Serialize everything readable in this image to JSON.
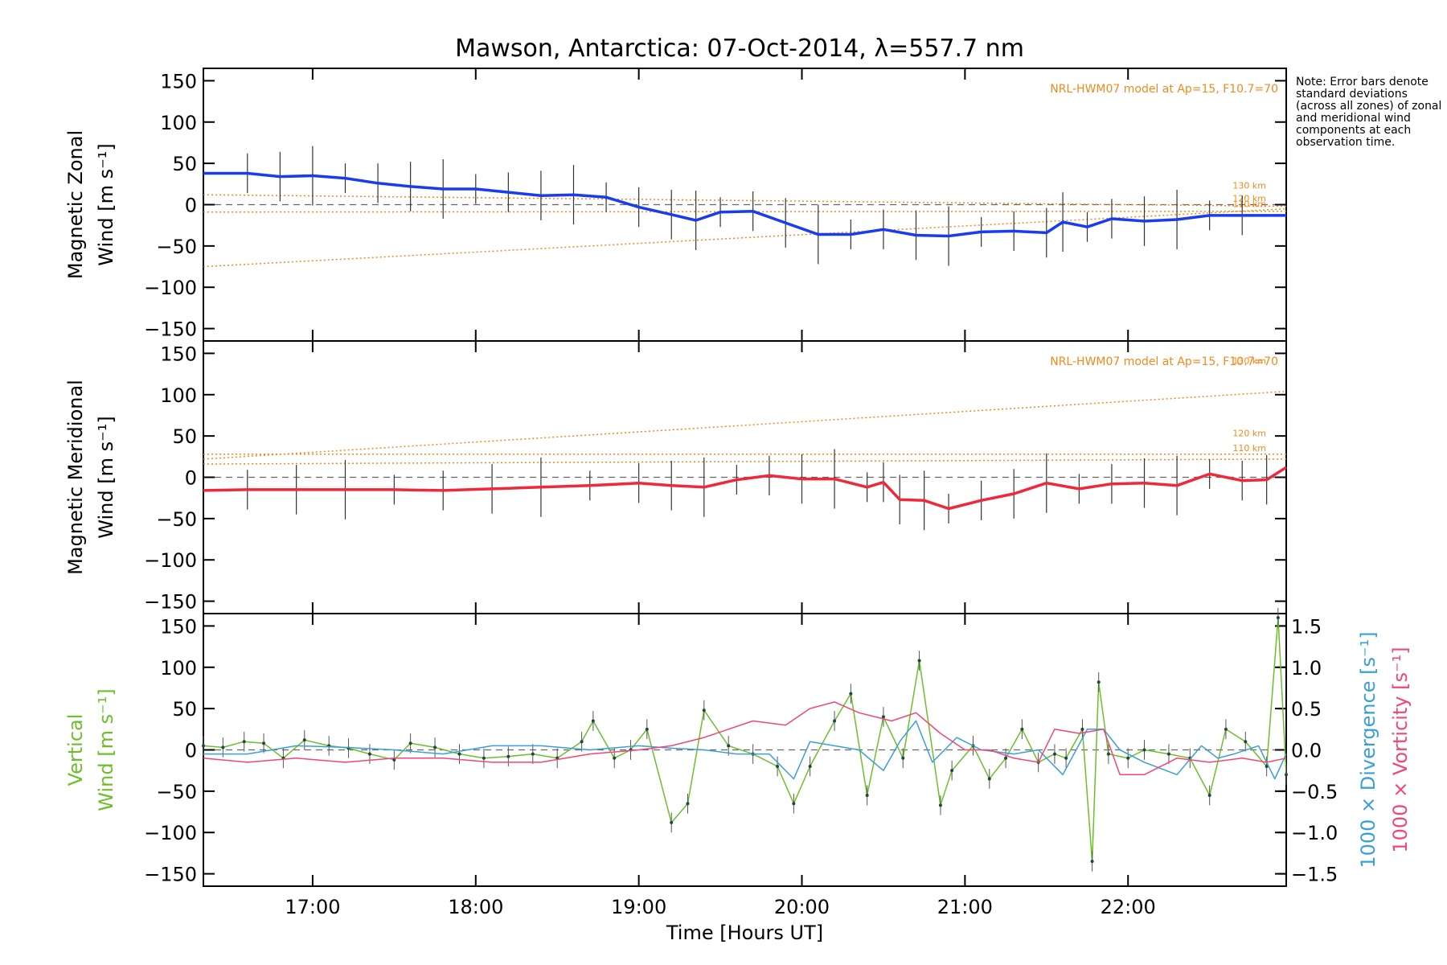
{
  "colors": {
    "zonal": "#1a3cf0",
    "meridional": "#f0283c",
    "vertical": "#6cbf2a",
    "divergence": "#3a9fd6",
    "vorticity": "#f0467a",
    "model": "#f08a1e",
    "errorbar": "#333333",
    "scatter": "#9aa0e0"
  },
  "chart_data": [
    {
      "type": "line",
      "title": "Mawson, Antarctica: 07-Oct-2014, λ=557.7 nm",
      "ylabel_line1": "Magnetic Zonal",
      "ylabel_line2": "Wind [m s⁻¹]",
      "ylim": [
        -165,
        165
      ],
      "xlim": [
        16.33,
        22.97
      ],
      "yticks": [
        -150,
        -100,
        -50,
        0,
        50,
        100,
        150
      ],
      "ytick_labels": [
        "−150",
        "−100",
        "−50",
        "0",
        "50",
        "100",
        "150"
      ],
      "model_label": "NRL-HWM07 model at Ap=15, F10.7=70",
      "model_altitudes": [
        "130 km",
        "120 km",
        "110 km"
      ],
      "model_lines": [
        {
          "name": "130 km",
          "x": [
            16.33,
            22.97
          ],
          "y": [
            12,
            -2
          ]
        },
        {
          "name": "120 km",
          "x": [
            16.33,
            22.97
          ],
          "y": [
            -9,
            -8
          ]
        },
        {
          "name": "110 km",
          "x": [
            16.33,
            22.97
          ],
          "y": [
            -75,
            -5
          ]
        }
      ],
      "series": [
        {
          "name": "Zonal mean",
          "x": [
            16.33,
            16.6,
            16.8,
            17.0,
            17.2,
            17.4,
            17.6,
            17.8,
            18.0,
            18.2,
            18.4,
            18.6,
            18.8,
            19.0,
            19.2,
            19.35,
            19.5,
            19.7,
            19.9,
            20.1,
            20.3,
            20.5,
            20.7,
            20.9,
            21.1,
            21.3,
            21.5,
            21.6,
            21.75,
            21.9,
            22.1,
            22.3,
            22.5,
            22.7,
            22.97
          ],
          "y": [
            38,
            38,
            34,
            35,
            32,
            26,
            22,
            19,
            19,
            15,
            11,
            12,
            9,
            -3,
            -12,
            -19,
            -9,
            -8,
            -22,
            -36,
            -36,
            -30,
            -37,
            -38,
            -33,
            -32,
            -34,
            -21,
            -27,
            -17,
            -20,
            -18,
            -13,
            -13,
            -13
          ]
        }
      ]
    },
    {
      "type": "line",
      "ylabel_line1": "Magnetic Meridional",
      "ylabel_line2": "Wind [m s⁻¹]",
      "ylim": [
        -165,
        165
      ],
      "xlim": [
        16.33,
        22.97
      ],
      "yticks": [
        -150,
        -100,
        -50,
        0,
        50,
        100,
        150
      ],
      "ytick_labels": [
        "−150",
        "−100",
        "−50",
        "0",
        "50",
        "100",
        "150"
      ],
      "model_label": "NRL-HWM07 model at Ap=15, F10.7=70",
      "model_altitudes": [
        "130 km",
        "120 km",
        "110 km"
      ],
      "model_lines": [
        {
          "name": "130 km",
          "x": [
            16.33,
            22.97
          ],
          "y": [
            22,
            104
          ]
        },
        {
          "name": "120 km",
          "x": [
            16.33,
            22.97
          ],
          "y": [
            28,
            28
          ]
        },
        {
          "name": "110 km",
          "x": [
            16.33,
            22.97
          ],
          "y": [
            16,
            22
          ]
        }
      ],
      "series": [
        {
          "name": "Meridional mean",
          "x": [
            16.33,
            16.6,
            16.9,
            17.2,
            17.5,
            17.8,
            18.1,
            18.4,
            18.7,
            19.0,
            19.2,
            19.4,
            19.6,
            19.8,
            20.0,
            20.2,
            20.4,
            20.5,
            20.6,
            20.75,
            20.9,
            21.1,
            21.3,
            21.5,
            21.7,
            21.9,
            22.1,
            22.3,
            22.5,
            22.7,
            22.85,
            22.97
          ],
          "y": [
            -16,
            -15,
            -15,
            -15,
            -15,
            -16,
            -14,
            -12,
            -10,
            -7,
            -10,
            -12,
            -3,
            2,
            -2,
            -2,
            -12,
            -6,
            -27,
            -28,
            -38,
            -28,
            -20,
            -7,
            -14,
            -8,
            -7,
            -10,
            4,
            -4,
            -3,
            12
          ]
        }
      ]
    },
    {
      "type": "line",
      "ylabel_left_line1": "Vertical",
      "ylabel_left_line2": "Wind [m s⁻¹]",
      "ylabel_right_blue": "1000 × Divergence [s⁻¹]",
      "ylabel_right_pink": "1000 × Vorticity [s⁻¹]",
      "ylim": [
        -165,
        165
      ],
      "y2lim": [
        -1.65,
        1.65
      ],
      "xlim": [
        16.33,
        22.97
      ],
      "yticks": [
        -150,
        -100,
        -50,
        0,
        50,
        100,
        150
      ],
      "ytick_labels": [
        "−150",
        "−100",
        "−50",
        "0",
        "50",
        "100",
        "150"
      ],
      "y2ticks": [
        -1.5,
        -1.0,
        -0.5,
        0.0,
        0.5,
        1.0,
        1.5
      ],
      "y2tick_labels": [
        "−1.5",
        "−1.0",
        "−0.5",
        "0.0",
        "0.5",
        "1.0",
        "1.5"
      ],
      "xticks": [
        17,
        18,
        19,
        20,
        21,
        22
      ],
      "xtick_labels": [
        "17:00",
        "18:00",
        "19:00",
        "20:00",
        "21:00",
        "22:00"
      ],
      "xlabel": "Time [Hours UT]",
      "series": [
        {
          "name": "Vertical",
          "axis": "left",
          "x": [
            16.33,
            16.45,
            16.58,
            16.7,
            16.82,
            16.95,
            17.1,
            17.22,
            17.35,
            17.5,
            17.6,
            17.75,
            17.9,
            18.05,
            18.2,
            18.35,
            18.5,
            18.65,
            18.72,
            18.85,
            18.95,
            19.05,
            19.2,
            19.3,
            19.4,
            19.55,
            19.7,
            19.85,
            19.95,
            20.05,
            20.2,
            20.3,
            20.4,
            20.5,
            20.62,
            20.72,
            20.85,
            20.92,
            21.05,
            21.15,
            21.25,
            21.35,
            21.45,
            21.55,
            21.62,
            21.72,
            21.78,
            21.82,
            21.88,
            22.0,
            22.1,
            22.25,
            22.38,
            22.5,
            22.6,
            22.72,
            22.85,
            22.92,
            22.97
          ],
          "y": [
            5,
            3,
            10,
            8,
            -10,
            12,
            5,
            2,
            -5,
            -12,
            8,
            3,
            -5,
            -10,
            -8,
            -5,
            -10,
            10,
            35,
            -10,
            0,
            25,
            -88,
            -65,
            48,
            5,
            -5,
            -20,
            -65,
            -20,
            35,
            68,
            -55,
            40,
            -10,
            108,
            -67,
            -25,
            5,
            -35,
            -10,
            25,
            -15,
            -5,
            -10,
            25,
            -135,
            82,
            -5,
            -10,
            0,
            -5,
            -10,
            -55,
            25,
            10,
            -20,
            160,
            -30
          ]
        },
        {
          "name": "Divergence",
          "axis": "right",
          "x": [
            16.33,
            16.6,
            16.9,
            17.2,
            17.5,
            17.8,
            18.1,
            18.4,
            18.7,
            19.0,
            19.2,
            19.4,
            19.6,
            19.8,
            19.95,
            20.05,
            20.2,
            20.35,
            20.5,
            20.6,
            20.7,
            20.8,
            20.95,
            21.1,
            21.3,
            21.45,
            21.6,
            21.75,
            21.85,
            21.95,
            22.1,
            22.3,
            22.45,
            22.55,
            22.65,
            22.8,
            22.9,
            22.97
          ],
          "y": [
            -0.05,
            -0.05,
            0.05,
            0.03,
            0.0,
            -0.05,
            0.05,
            0.05,
            0.0,
            0.05,
            0.02,
            0.0,
            -0.05,
            -0.05,
            -0.35,
            0.1,
            0.05,
            0.0,
            -0.25,
            0.1,
            0.35,
            -0.15,
            0.15,
            0.0,
            -0.05,
            0.0,
            -0.3,
            0.25,
            0.25,
            0.0,
            -0.15,
            -0.3,
            0.05,
            -0.1,
            -0.05,
            0.05,
            -0.35,
            -0.05
          ]
        },
        {
          "name": "Vorticity",
          "axis": "right",
          "x": [
            16.33,
            16.6,
            16.9,
            17.2,
            17.5,
            17.8,
            18.1,
            18.4,
            18.7,
            19.0,
            19.2,
            19.4,
            19.55,
            19.7,
            19.9,
            20.05,
            20.2,
            20.35,
            20.55,
            20.7,
            20.85,
            21.0,
            21.15,
            21.3,
            21.45,
            21.55,
            21.7,
            21.85,
            21.95,
            22.1,
            22.3,
            22.5,
            22.7,
            22.85,
            22.97
          ],
          "y": [
            -0.1,
            -0.15,
            -0.1,
            -0.15,
            -0.1,
            -0.1,
            -0.15,
            -0.15,
            -0.05,
            0.0,
            0.05,
            0.15,
            0.25,
            0.35,
            0.3,
            0.5,
            0.58,
            0.45,
            0.35,
            0.45,
            0.2,
            0.0,
            0.0,
            -0.1,
            -0.15,
            0.25,
            0.2,
            0.25,
            -0.3,
            -0.3,
            -0.1,
            -0.15,
            -0.1,
            -0.15,
            -0.1
          ]
        }
      ]
    }
  ],
  "note": "Note: Error bars denote standard deviations (across all zones) of zonal and meridional wind components at each observation time."
}
